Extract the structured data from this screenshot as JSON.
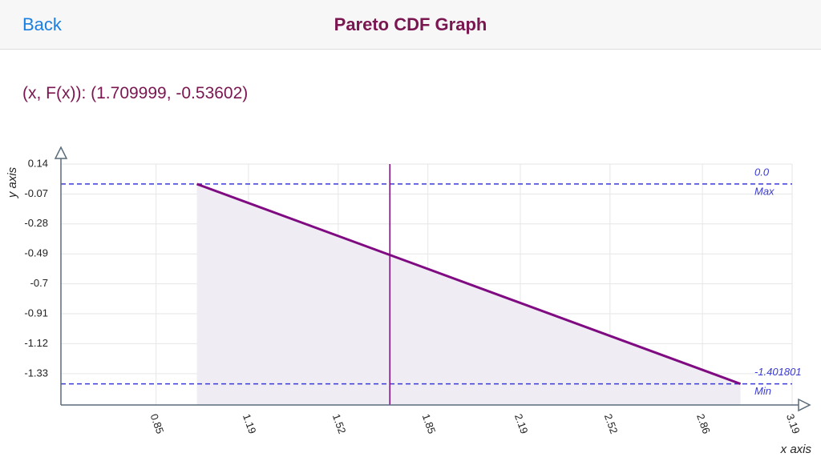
{
  "header": {
    "back": "Back",
    "title": "Pareto CDF Graph"
  },
  "readout": "(x, F(x)): (1.709999, -0.53602)",
  "chart_data": {
    "type": "line",
    "x": [
      1,
      3
    ],
    "values": [
      0,
      -1.401801
    ],
    "color": "#7f0a82",
    "fill": "#efecf3",
    "xlim": [
      0.5,
      3.19
    ],
    "ylim": [
      -1.55,
      0.14
    ],
    "xticks": [
      0.85,
      1.19,
      1.52,
      1.85,
      2.19,
      2.52,
      2.86,
      3.19
    ],
    "yticks": [
      0.14,
      -0.07,
      -0.28,
      -0.49,
      -0.7,
      -0.91,
      -1.12,
      -1.33
    ],
    "grid": true,
    "x_label": "x axis",
    "y_label": "y axis",
    "cursor_x": 1.709999,
    "reference_lines": [
      {
        "value": 0,
        "label": "0.0",
        "name": "Max",
        "color": "#3a3ad6"
      },
      {
        "value": -1.401801,
        "label": "-1.401801",
        "name": "Min",
        "color": "#3a3ad6"
      }
    ]
  }
}
